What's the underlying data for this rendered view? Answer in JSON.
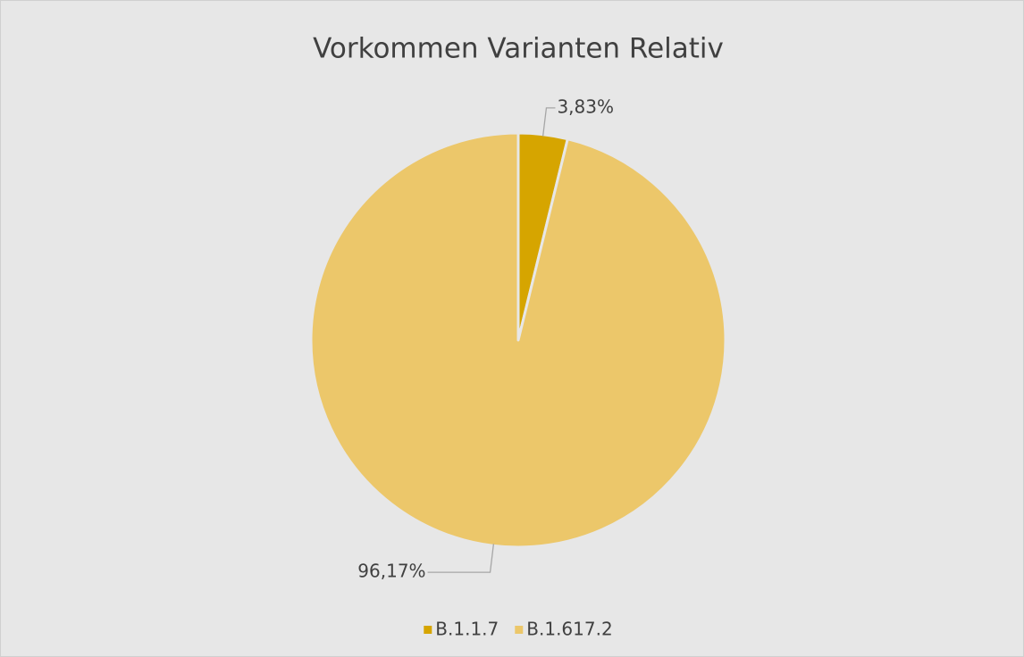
{
  "chart_data": {
    "type": "pie",
    "title": "Vorkommen Varianten Relativ",
    "categories": [
      "B.1.1.7",
      "B.1.617.2"
    ],
    "values": [
      3.83,
      96.17
    ],
    "value_labels": [
      "3,83%",
      "96,17%"
    ],
    "colors": [
      "#d6a500",
      "#ecc76a"
    ],
    "legend": "bottom"
  }
}
